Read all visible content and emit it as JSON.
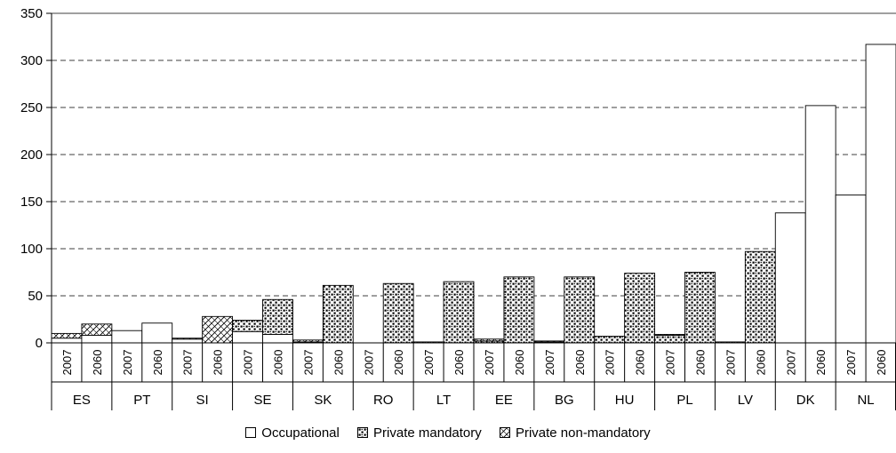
{
  "chart_data": {
    "type": "bar",
    "stacked": true,
    "ylim": [
      0,
      350
    ],
    "yticks": [
      0,
      50,
      100,
      150,
      200,
      250,
      300,
      350
    ],
    "grid": "horizontal-dashed",
    "legend_position": "bottom",
    "years": [
      "2007",
      "2060"
    ],
    "countries": [
      "ES",
      "PT",
      "SI",
      "SE",
      "SK",
      "RO",
      "LT",
      "EE",
      "BG",
      "HU",
      "PL",
      "LV",
      "DK",
      "NL"
    ],
    "series": [
      {
        "name": "Occupational",
        "pattern": "white",
        "values": {
          "ES": [
            5,
            8
          ],
          "PT": [
            13,
            21
          ],
          "SI": [
            4,
            0
          ],
          "SE": [
            12,
            9
          ],
          "SK": [
            0,
            0
          ],
          "RO": [
            0,
            0
          ],
          "LT": [
            0,
            0
          ],
          "EE": [
            0,
            0
          ],
          "BG": [
            0,
            0
          ],
          "HU": [
            0,
            0
          ],
          "PL": [
            0,
            0
          ],
          "LV": [
            0,
            0
          ],
          "DK": [
            138,
            252
          ],
          "NL": [
            157,
            317
          ]
        }
      },
      {
        "name": "Private mandatory",
        "pattern": "dots",
        "values": {
          "ES": [
            0,
            0
          ],
          "PT": [
            0,
            0
          ],
          "SI": [
            0,
            0
          ],
          "SE": [
            12,
            37
          ],
          "SK": [
            1,
            61
          ],
          "RO": [
            0,
            63
          ],
          "LT": [
            1,
            65
          ],
          "EE": [
            2,
            70
          ],
          "BG": [
            1,
            70
          ],
          "HU": [
            7,
            74
          ],
          "PL": [
            8,
            75
          ],
          "LV": [
            1,
            97
          ],
          "DK": [
            0,
            0
          ],
          "NL": [
            0,
            0
          ]
        }
      },
      {
        "name": "Private non-mandatory",
        "pattern": "hatch",
        "values": {
          "ES": [
            5,
            12
          ],
          "PT": [
            0,
            0
          ],
          "SI": [
            1,
            28
          ],
          "SE": [
            0,
            0
          ],
          "SK": [
            2,
            0
          ],
          "RO": [
            0,
            0
          ],
          "LT": [
            0,
            0
          ],
          "EE": [
            2,
            0
          ],
          "BG": [
            1,
            0
          ],
          "HU": [
            0,
            0
          ],
          "PL": [
            1,
            0
          ],
          "LV": [
            0,
            0
          ],
          "DK": [
            0,
            0
          ],
          "NL": [
            0,
            0
          ]
        }
      }
    ]
  },
  "legend": {
    "occupational": "Occupational",
    "private_mandatory": "Private mandatory",
    "private_non_mandatory": "Private non-mandatory"
  }
}
